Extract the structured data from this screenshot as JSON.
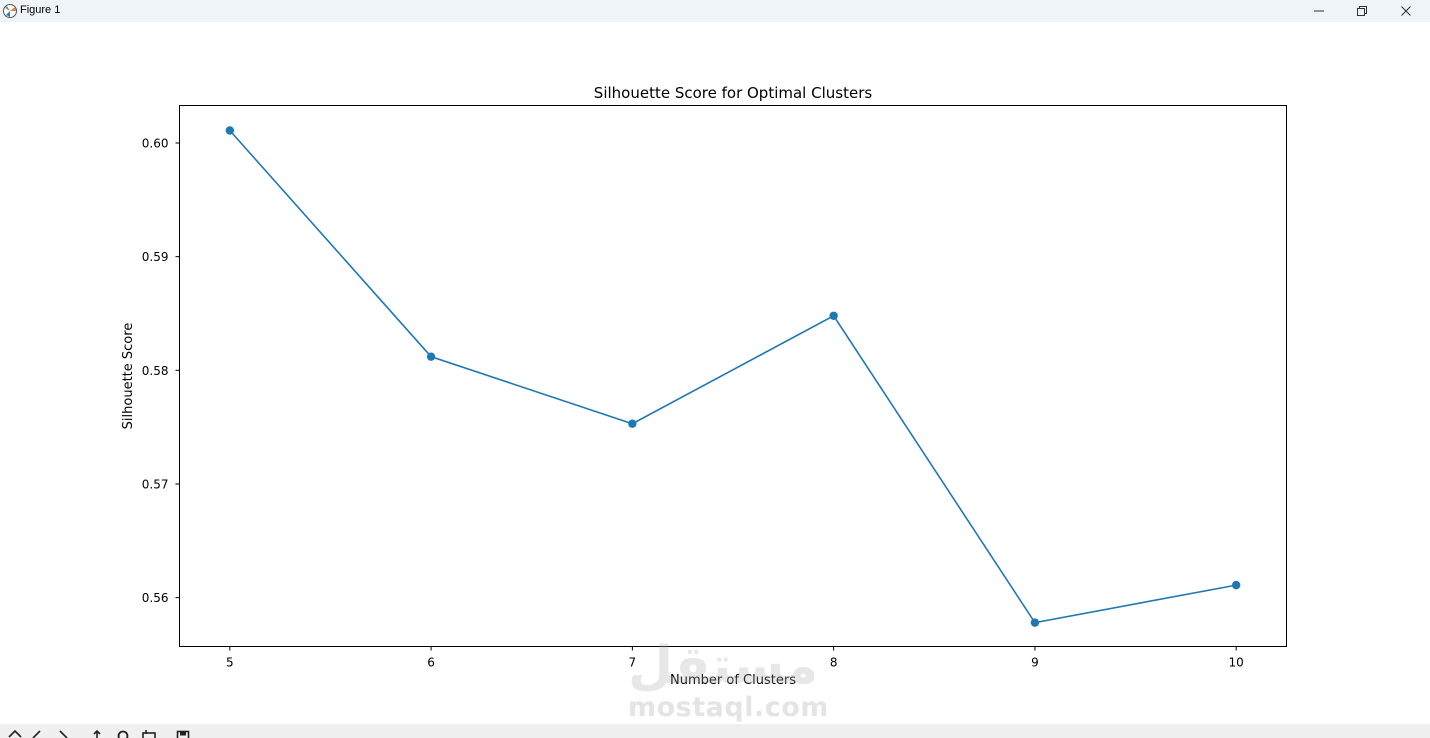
{
  "window": {
    "title": "Figure 1",
    "icons": [
      "matplotlib-icon",
      "minimize-icon",
      "restore-icon",
      "close-icon"
    ]
  },
  "colors": {
    "series": "#1f77b4",
    "titlebar": "#eff4f9",
    "toolbar": "#f0f0f0"
  },
  "watermark": {
    "arabic": "مستقل",
    "latin": "mostaql.com"
  },
  "toolbar": {
    "icons": [
      "home-icon",
      "back-icon",
      "forward-icon",
      "pan-icon",
      "zoom-icon",
      "configure-icon",
      "save-icon"
    ]
  },
  "chart_data": {
    "type": "line",
    "title": "Silhouette Score for Optimal Clusters",
    "xlabel": "Number of Clusters",
    "ylabel": "Silhouette Score",
    "x": [
      5,
      6,
      7,
      8,
      9,
      10
    ],
    "series": [
      {
        "values": [
          0.6011,
          0.5812,
          0.5753,
          0.5848,
          0.5578,
          0.5611
        ],
        "marker": "circle"
      }
    ],
    "xticks": [
      "5",
      "6",
      "7",
      "8",
      "9",
      "10"
    ],
    "yticks": [
      "0.56",
      "0.57",
      "0.58",
      "0.59",
      "0.60"
    ],
    "xlim": [
      4.75,
      10.25
    ],
    "ylim": [
      0.5557,
      0.6033
    ],
    "grid": false,
    "legend": "none"
  }
}
